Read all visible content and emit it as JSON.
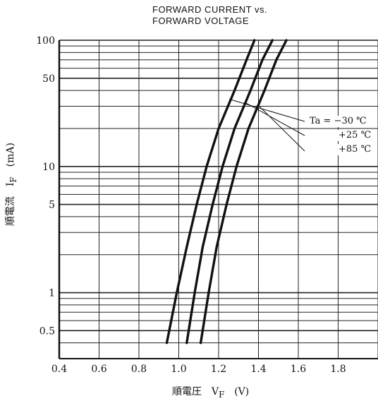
{
  "chart_data": {
    "type": "line",
    "title_lines": [
      "FORWARD CURRENT vs.",
      "FORWARD VOLTAGE"
    ],
    "xlabel": "順電圧　V<sub>F</sub>　(V)",
    "ylabel": "順電流　I<sub>F</sub>　(mA)",
    "xlim": [
      0.4,
      2.0
    ],
    "ylim": [
      0.3,
      100
    ],
    "y_scale": "log",
    "grid": true,
    "x_ticks": [
      "0.4",
      "0.6",
      "0.8",
      "1.0",
      "1.2",
      "1.4",
      "1.6",
      "1.8"
    ],
    "y_ticks": [
      "0.5",
      "1",
      "5",
      "10",
      "50",
      "100"
    ],
    "series": [
      {
        "name": "Ta = −30 ℃",
        "x": [
          0.94,
          0.99,
          1.04,
          1.09,
          1.14,
          1.2,
          1.28,
          1.34,
          1.38
        ],
        "y": [
          0.4,
          1,
          2.3,
          5,
          10,
          20,
          40,
          70,
          100
        ]
      },
      {
        "name": "+25 ℃",
        "x": [
          1.04,
          1.08,
          1.12,
          1.17,
          1.22,
          1.28,
          1.36,
          1.42,
          1.47
        ],
        "y": [
          0.4,
          1,
          2.3,
          5,
          10,
          20,
          40,
          70,
          100
        ]
      },
      {
        "name": "+85 ℃",
        "x": [
          1.11,
          1.15,
          1.19,
          1.24,
          1.29,
          1.35,
          1.43,
          1.49,
          1.54
        ],
        "y": [
          0.4,
          1,
          2.3,
          5,
          10,
          20,
          40,
          70,
          100
        ]
      }
    ],
    "legend": {
      "labels": [
        "Ta = −30 ℃",
        "+25 ℃",
        "+85 ℃"
      ],
      "placement": "right, with leader lines to curves"
    }
  }
}
